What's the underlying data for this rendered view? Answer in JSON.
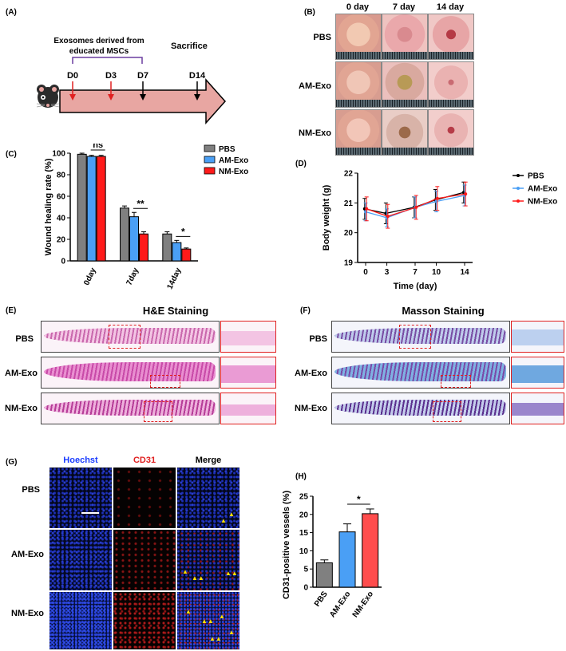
{
  "panels": {
    "A": "(A)",
    "B": "(B)",
    "C": "(C)",
    "D": "(D)",
    "E": "(E)",
    "F": "(F)",
    "G": "(G)",
    "H": "(H)"
  },
  "timeline": {
    "exosome_note_line1": "Exosomes derived from",
    "exosome_note_line2": "educated MSCs",
    "sacrifice": "Sacrifice",
    "ticks": [
      "D0",
      "D3",
      "D7",
      "D14"
    ]
  },
  "photos": {
    "columns": [
      "0 day",
      "7 day",
      "14 day"
    ],
    "rows": [
      "PBS",
      "AM-Exo",
      "NM-Exo"
    ]
  },
  "staining": {
    "he_title": "H&E Staining",
    "masson_title": "Masson Staining",
    "rows": [
      "PBS",
      "AM-Exo",
      "NM-Exo"
    ]
  },
  "fluorescence": {
    "columns": [
      "Hoechst",
      "CD31",
      "Merge"
    ],
    "rows": [
      "PBS",
      "AM-Exo",
      "NM-Exo"
    ]
  },
  "chart_data": [
    {
      "type": "bar",
      "panel": "C",
      "ylabel": "Wound healing rate (%)",
      "categories": [
        "0day",
        "7day",
        "14day"
      ],
      "ylim": [
        0,
        100
      ],
      "yticks": [
        0,
        20,
        40,
        60,
        80,
        100
      ],
      "series": [
        {
          "name": "PBS",
          "color": "#808080",
          "values": [
            99,
            49,
            25
          ],
          "errors": [
            1,
            2,
            2
          ]
        },
        {
          "name": "AM-Exo",
          "color": "#4a9ff5",
          "values": [
            97,
            41,
            17
          ],
          "errors": [
            1,
            4,
            2
          ]
        },
        {
          "name": "NM-Exo",
          "color": "#ff1a1a",
          "values": [
            97,
            25,
            11
          ],
          "errors": [
            1,
            2,
            1
          ]
        }
      ],
      "annotations": [
        "ns",
        "**",
        "*"
      ]
    },
    {
      "type": "line",
      "panel": "D",
      "xlabel": "Time (day)",
      "ylabel": "Body weight (g)",
      "x": [
        0,
        3,
        7,
        10,
        14
      ],
      "xticks": [
        "0",
        "3",
        "7",
        "10",
        "14"
      ],
      "ylim": [
        19,
        22
      ],
      "yticks": [
        19,
        20,
        21,
        22
      ],
      "series": [
        {
          "name": "PBS",
          "color": "#000000",
          "values": [
            20.8,
            20.65,
            20.85,
            21.1,
            21.35
          ],
          "errors": [
            0.35,
            0.35,
            0.35,
            0.35,
            0.35
          ]
        },
        {
          "name": "AM-Exo",
          "color": "#4a9ff5",
          "values": [
            20.7,
            20.5,
            20.85,
            21.05,
            21.25
          ],
          "errors": [
            0.3,
            0.3,
            0.35,
            0.35,
            0.35
          ]
        },
        {
          "name": "NM-Exo",
          "color": "#ff1a1a",
          "values": [
            20.8,
            20.55,
            20.85,
            21.15,
            21.3
          ],
          "errors": [
            0.4,
            0.4,
            0.4,
            0.4,
            0.4
          ]
        }
      ]
    },
    {
      "type": "bar",
      "panel": "H",
      "ylabel": "CD31-positive vessels (%)",
      "categories": [
        "PBS",
        "AM-Exo",
        "NM-Exo"
      ],
      "values": [
        6.7,
        15.2,
        20.2
      ],
      "errors": [
        0.8,
        2.2,
        1.3
      ],
      "colors": [
        "#808080",
        "#4a9ff5",
        "#ff4d4d"
      ],
      "ylim": [
        0,
        25
      ],
      "yticks": [
        0,
        5,
        10,
        15,
        20,
        25
      ],
      "annotations": [
        "*"
      ]
    }
  ]
}
